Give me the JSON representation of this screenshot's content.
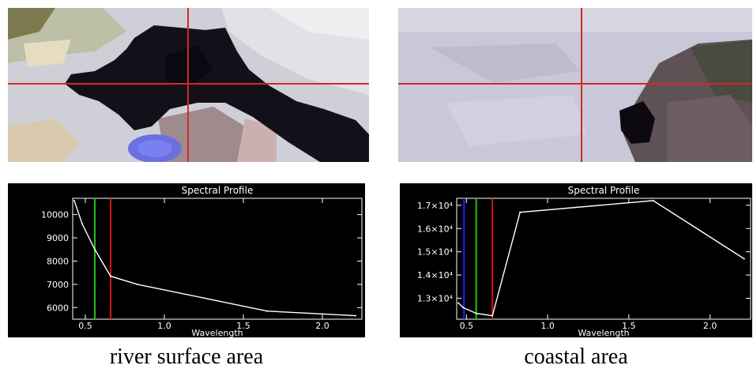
{
  "captions": {
    "left": "river surface area",
    "right": "coastal area"
  },
  "colors": {
    "crosshair": "#d22a2a",
    "plot_background": "#000000",
    "plot_foreground": "#ffffff",
    "blue_band": "#2020ff",
    "green_band": "#19c419",
    "red_band": "#d21414"
  },
  "chart_data": [
    {
      "type": "line",
      "title": "Spectral Profile",
      "xlabel": "Wavelength",
      "ylabel": "",
      "xlim": [
        0.42,
        2.25
      ],
      "ylim": [
        5500,
        10700
      ],
      "x_ticks": [
        0.5,
        1.0,
        1.5,
        2.0
      ],
      "x_tick_labels": [
        "0.5",
        "1.0",
        "1.5",
        "2.0"
      ],
      "y_ticks": [
        6000,
        7000,
        8000,
        9000,
        10000
      ],
      "y_tick_labels": [
        "6000",
        "7000",
        "8000",
        "9000",
        "10000"
      ],
      "grid": false,
      "series": [
        {
          "x": [
            0.43,
            0.48,
            0.56,
            0.66,
            0.83,
            1.65,
            2.21
          ],
          "values": [
            10600,
            9600,
            8500,
            7350,
            7000,
            5850,
            5650
          ]
        }
      ],
      "band_markers": [
        {
          "x": 0.56,
          "color": "green"
        },
        {
          "x": 0.66,
          "color": "red"
        }
      ]
    },
    {
      "type": "line",
      "title": "Spectral Profile",
      "xlabel": "Wavelength",
      "ylabel": "",
      "xlim": [
        0.44,
        2.25
      ],
      "ylim": [
        12100,
        17300
      ],
      "x_ticks": [
        0.5,
        1.0,
        1.5,
        2.0
      ],
      "x_tick_labels": [
        "0.5",
        "1.0",
        "1.5",
        "2.0"
      ],
      "y_ticks": [
        13000,
        14000,
        15000,
        16000,
        17000
      ],
      "y_tick_labels": [
        "1.3×10⁴",
        "1.4×10⁴",
        "1.5×10⁴",
        "1.6×10⁴",
        "1.7×10⁴"
      ],
      "grid": false,
      "series": [
        {
          "x": [
            0.45,
            0.48,
            0.56,
            0.66,
            0.83,
            1.65,
            2.21
          ],
          "values": [
            12800,
            12600,
            12350,
            12250,
            16700,
            17200,
            14700
          ]
        }
      ],
      "band_markers": [
        {
          "x": 0.485,
          "color": "blue"
        },
        {
          "x": 0.56,
          "color": "green"
        },
        {
          "x": 0.66,
          "color": "red"
        }
      ]
    }
  ]
}
